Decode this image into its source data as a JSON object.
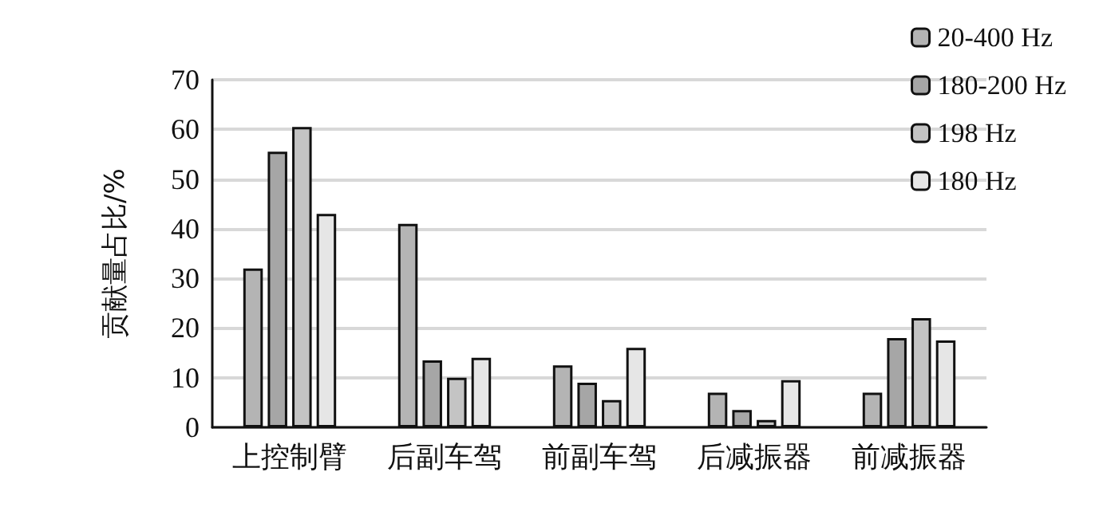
{
  "chart_data": {
    "type": "bar",
    "ylabel": "贡献量占比/%",
    "categories": [
      "上控制臂",
      "后副车驾",
      "前副车驾",
      "后减振器",
      "前减振器"
    ],
    "series": [
      {
        "name": "20-400 Hz",
        "color": "#b4b4b4",
        "values": [
          32,
          41,
          12.5,
          7,
          7
        ]
      },
      {
        "name": "180-200 Hz",
        "color": "#a6a6a6",
        "values": [
          55.5,
          13.5,
          9,
          3.5,
          18
        ]
      },
      {
        "name": "198 Hz",
        "color": "#c4c4c4",
        "values": [
          60.5,
          10,
          5.5,
          1.5,
          22
        ]
      },
      {
        "name": "180 Hz",
        "color": "#e6e6e6",
        "values": [
          43,
          14,
          16,
          9.5,
          17.5
        ]
      }
    ],
    "ylim": [
      0,
      70
    ],
    "yticks": [
      0,
      10,
      20,
      30,
      40,
      50,
      60,
      70
    ],
    "grid": "y",
    "legend": "top right"
  }
}
